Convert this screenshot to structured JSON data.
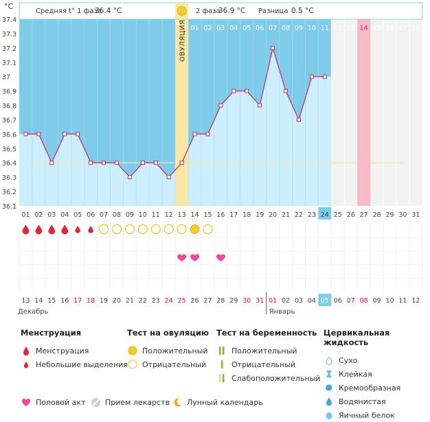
{
  "header": {
    "unit": "°C",
    "phase1_label": "Средняя t° 1 фаза",
    "phase1_value": "36.4 °C",
    "phase2_label": "2 фаза",
    "phase2_value": "36.9 °C",
    "diff_label": "Разница",
    "diff_value": "0.5 °C",
    "ovulation_label": "ОВУЛЯЦИЯ"
  },
  "chart_data": {
    "type": "area",
    "ylim": [
      36.1,
      37.4
    ],
    "y_ticks": [
      "36.1",
      "36.2",
      "36.3",
      "36.4",
      "36.5",
      "36.6",
      "36.7",
      "36.8",
      "36.9",
      "37",
      "37.1",
      "37.2",
      "37.3",
      "37.4"
    ],
    "cycle_days": [
      "01",
      "02",
      "03",
      "04",
      "05",
      "06",
      "07",
      "08",
      "09",
      "10",
      "11",
      "12",
      "13",
      "14",
      "15",
      "16",
      "17",
      "18",
      "19",
      "20",
      "21",
      "22",
      "23",
      "24",
      "25",
      "26",
      "27",
      "28",
      "29",
      "30",
      "31"
    ],
    "temperatures": [
      36.6,
      36.6,
      36.4,
      36.6,
      36.6,
      36.4,
      36.4,
      36.4,
      36.3,
      36.4,
      36.4,
      36.3,
      36.4,
      36.6,
      36.6,
      36.8,
      36.9,
      36.9,
      36.8,
      37.2,
      36.9,
      36.7,
      37.0,
      37.0
    ],
    "coverline": 36.4,
    "ovulation_day": 13,
    "current_day": 24,
    "phase2_days": [
      "01",
      "02",
      "03",
      "04",
      "05",
      "06",
      "07",
      "08",
      "09",
      "10",
      "11",
      "12",
      "13",
      "14",
      "15",
      "16",
      "17",
      "18"
    ],
    "highlight_phase2_day": "14",
    "calendar_dates": [
      "13",
      "14",
      "15",
      "16",
      "17",
      "18",
      "19",
      "20",
      "21",
      "22",
      "23",
      "24",
      "25",
      "26",
      "27",
      "28",
      "29",
      "30",
      "31",
      "01",
      "02",
      "03",
      "04",
      "05",
      "06",
      "07",
      "08",
      "09",
      "10",
      "11",
      "12"
    ],
    "weekend_indices": [
      4,
      5,
      11,
      12,
      17,
      18,
      19,
      25,
      26
    ],
    "today_index": 23,
    "months": [
      "Декабрь",
      "Январь"
    ],
    "menstruation": [
      "big",
      "big",
      "big",
      "big",
      "small",
      "small"
    ],
    "ovulation_tests": [
      "neg",
      "neg",
      "neg",
      "neg",
      "neg",
      "neg",
      "neg",
      "pos",
      "neg"
    ],
    "intercourse_days": [
      13,
      14,
      16
    ]
  },
  "legend": {
    "menstruation": {
      "title": "Менструация",
      "items": [
        "Менструация",
        "Небольшие выделения"
      ]
    },
    "ovulation_test": {
      "title": "Тест на овуляцию",
      "items": [
        "Положительный",
        "Отрицательный"
      ]
    },
    "pregnancy_test": {
      "title": "Тест на беременность",
      "items": [
        "Положительный",
        "Отрицательный",
        "Слабоположительный"
      ]
    },
    "cervical": {
      "title": "Цервикальная жидкость",
      "items": [
        "Сухо",
        "Клейкая",
        "Кремообразная",
        "Водянистая",
        "Яичный белок"
      ]
    },
    "bottom": [
      "Половой акт",
      "Прием лекарств",
      "Лунный календарь"
    ]
  },
  "colors": {
    "past_bg": "#7ecbea",
    "fill": "#cdeefc",
    "line": "#c4275a",
    "ovulation": "#fae7a4",
    "current": "#f8b9c9",
    "weekend": "#d6174d"
  }
}
